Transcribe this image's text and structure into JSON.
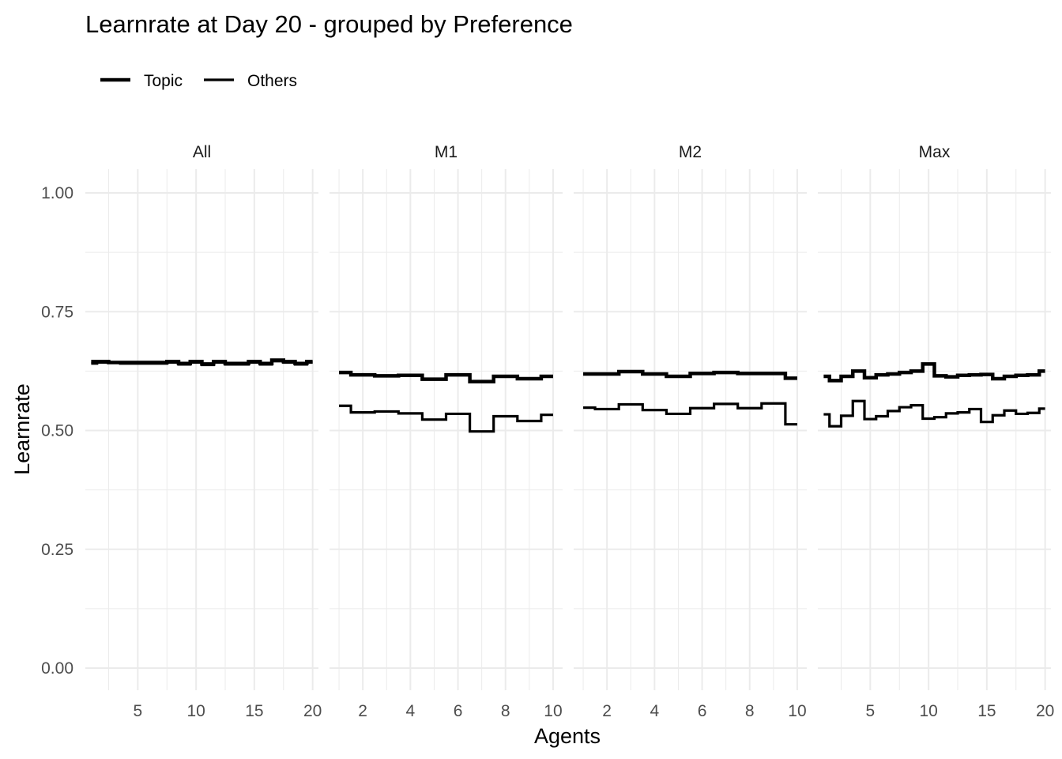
{
  "chart_data": {
    "type": "line",
    "step": true,
    "title": "Learnrate at Day 20 - grouped by Preference",
    "xlabel": "Agents",
    "ylabel": "Learnrate",
    "ylim": [
      0,
      1
    ],
    "yticks": [
      0,
      0.25,
      0.5,
      0.75,
      1
    ],
    "ytick_labels": [
      "0.00",
      "0.25",
      "0.50",
      "0.75",
      "1.00"
    ],
    "grid": true,
    "legend": {
      "position": "top-left",
      "entries": [
        "Topic",
        "Others"
      ]
    },
    "series_names": [
      "Topic",
      "Others"
    ],
    "colors": {
      "line": "#000000",
      "grid": "#ebebeb"
    },
    "panels": [
      {
        "strip": "All",
        "xlim": [
          0.5,
          20.5
        ],
        "xticks": [
          5,
          10,
          15,
          20
        ],
        "xtick_labels": [
          "5",
          "10",
          "15",
          "20"
        ],
        "series": [
          {
            "name": "Topic",
            "x": [
              1,
              2,
              3,
              4,
              5,
              6,
              7,
              8,
              9,
              10,
              11,
              12,
              13,
              14,
              15,
              16,
              17,
              18,
              19,
              20
            ],
            "y": [
              0.645,
              0.645,
              0.643,
              0.643,
              0.643,
              0.643,
              0.643,
              0.645,
              0.641,
              0.645,
              0.64,
              0.645,
              0.641,
              0.641,
              0.645,
              0.641,
              0.648,
              0.645,
              0.641,
              0.645
            ]
          },
          {
            "name": "Others",
            "x": [
              1,
              2,
              3,
              4,
              5,
              6,
              7,
              8,
              9,
              10,
              11,
              12,
              13,
              14,
              15,
              16,
              17,
              18,
              19,
              20
            ],
            "y": [
              0.641,
              0.643,
              0.643,
              0.641,
              0.641,
              0.641,
              0.641,
              0.643,
              0.639,
              0.643,
              0.638,
              0.643,
              0.639,
              0.639,
              0.643,
              0.639,
              0.646,
              0.643,
              0.639,
              0.643
            ]
          }
        ]
      },
      {
        "strip": "M1",
        "xlim": [
          0.6,
          10.4
        ],
        "xticks": [
          2,
          4,
          6,
          8,
          10
        ],
        "xtick_labels": [
          "2",
          "4",
          "6",
          "8",
          "10"
        ],
        "series": [
          {
            "name": "Topic",
            "x": [
              1,
              2,
              3,
              4,
              5,
              6,
              7,
              8,
              9,
              10
            ],
            "y": [
              0.622,
              0.617,
              0.615,
              0.616,
              0.608,
              0.617,
              0.603,
              0.614,
              0.609,
              0.614
            ]
          },
          {
            "name": "Others",
            "x": [
              1,
              2,
              3,
              4,
              5,
              6,
              7,
              8,
              9,
              10
            ],
            "y": [
              0.552,
              0.538,
              0.54,
              0.536,
              0.523,
              0.535,
              0.498,
              0.53,
              0.52,
              0.533
            ]
          }
        ]
      },
      {
        "strip": "M2",
        "xlim": [
          0.6,
          10.4
        ],
        "xticks": [
          2,
          4,
          6,
          8,
          10
        ],
        "xtick_labels": [
          "2",
          "4",
          "6",
          "8",
          "10"
        ],
        "series": [
          {
            "name": "Topic",
            "x": [
              1,
              2,
              3,
              4,
              5,
              6,
              7,
              8,
              9,
              10
            ],
            "y": [
              0.619,
              0.619,
              0.624,
              0.619,
              0.614,
              0.62,
              0.622,
              0.62,
              0.62,
              0.61
            ]
          },
          {
            "name": "Others",
            "x": [
              1,
              2,
              3,
              4,
              5,
              6,
              7,
              8,
              9,
              10
            ],
            "y": [
              0.548,
              0.545,
              0.555,
              0.543,
              0.535,
              0.547,
              0.556,
              0.547,
              0.557,
              0.513
            ]
          }
        ]
      },
      {
        "strip": "Max",
        "xlim": [
          0.5,
          20.5
        ],
        "xticks": [
          5,
          10,
          15,
          20
        ],
        "xtick_labels": [
          "5",
          "10",
          "15",
          "20"
        ],
        "series": [
          {
            "name": "Topic",
            "x": [
              1,
              2,
              3,
              4,
              5,
              6,
              7,
              8,
              9,
              10,
              11,
              12,
              13,
              14,
              15,
              16,
              17,
              18,
              19,
              20
            ],
            "y": [
              0.614,
              0.605,
              0.614,
              0.625,
              0.611,
              0.617,
              0.619,
              0.622,
              0.625,
              0.64,
              0.615,
              0.613,
              0.616,
              0.617,
              0.618,
              0.609,
              0.614,
              0.616,
              0.617,
              0.625
            ]
          },
          {
            "name": "Others",
            "x": [
              1,
              2,
              3,
              4,
              5,
              6,
              7,
              8,
              9,
              10,
              11,
              12,
              13,
              14,
              15,
              16,
              17,
              18,
              19,
              20
            ],
            "y": [
              0.534,
              0.509,
              0.531,
              0.562,
              0.524,
              0.53,
              0.541,
              0.549,
              0.553,
              0.525,
              0.528,
              0.536,
              0.538,
              0.545,
              0.518,
              0.532,
              0.542,
              0.535,
              0.537,
              0.546
            ]
          }
        ]
      }
    ]
  }
}
